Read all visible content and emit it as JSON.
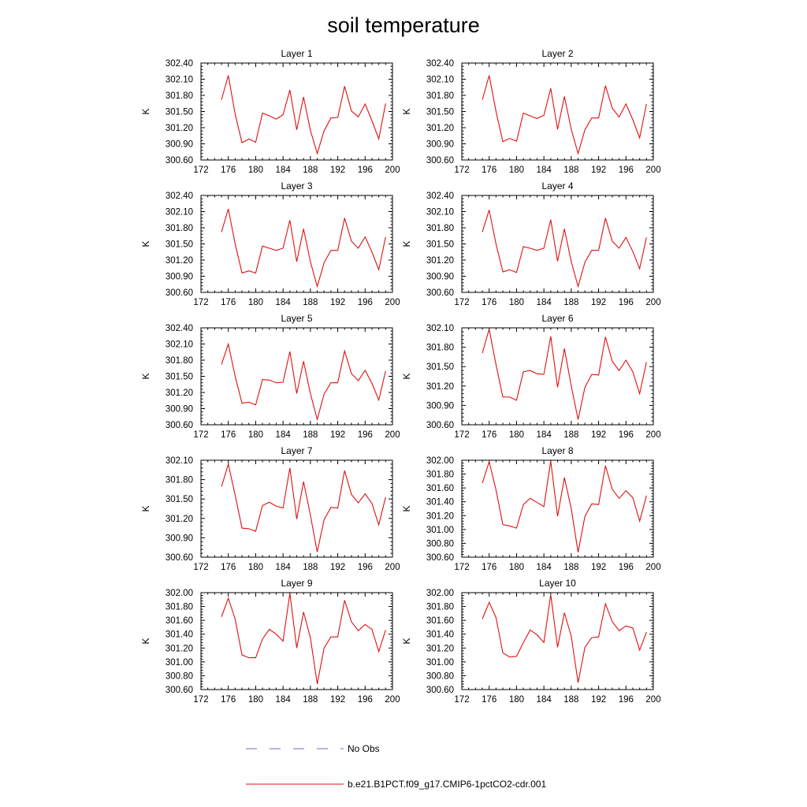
{
  "figure": {
    "title": "soil temperature",
    "legend": [
      {
        "label": "No Obs",
        "color": "#6a6ad0",
        "dash": "dashed"
      },
      {
        "label": "b.e21.B1PCT.f09_g17.CMIP6-1pctCO2-cdr.001",
        "color": "#e01010",
        "dash": "solid"
      }
    ]
  },
  "chart_data": [
    {
      "type": "line",
      "title": "Layer 1",
      "ylabel": "K",
      "xlim": [
        172,
        200
      ],
      "ylim": [
        300.6,
        302.4
      ],
      "xticks": [
        172,
        176,
        180,
        184,
        188,
        192,
        196,
        200
      ],
      "yticks": [
        "300.60",
        "300.90",
        "301.20",
        "301.50",
        "301.80",
        "302.10",
        "302.40"
      ],
      "series": [
        {
          "color": "#e01010",
          "x": [
            175,
            176,
            177,
            178,
            179,
            180,
            181,
            182,
            183,
            184,
            185,
            186,
            187,
            188,
            189,
            190,
            191,
            192,
            193,
            194,
            195,
            196,
            197,
            198,
            199
          ],
          "values": [
            301.72,
            302.17,
            301.45,
            300.92,
            300.99,
            300.93,
            301.47,
            301.42,
            301.36,
            301.44,
            301.9,
            301.16,
            301.77,
            301.15,
            300.72,
            301.14,
            301.38,
            301.39,
            301.97,
            301.51,
            301.4,
            301.64,
            301.33,
            300.99,
            301.65
          ]
        }
      ]
    },
    {
      "type": "line",
      "title": "Layer 2",
      "ylabel": "K",
      "xlim": [
        172,
        200
      ],
      "ylim": [
        300.6,
        302.4
      ],
      "xticks": [
        172,
        176,
        180,
        184,
        188,
        192,
        196,
        200
      ],
      "yticks": [
        "300.60",
        "300.90",
        "301.20",
        "301.50",
        "301.80",
        "302.10",
        "302.40"
      ],
      "series": [
        {
          "color": "#e01010",
          "x": [
            175,
            176,
            177,
            178,
            179,
            180,
            181,
            182,
            183,
            184,
            185,
            186,
            187,
            188,
            189,
            190,
            191,
            192,
            193,
            194,
            195,
            196,
            197,
            198,
            199
          ],
          "values": [
            301.72,
            302.17,
            301.5,
            300.94,
            301.0,
            300.95,
            301.47,
            301.42,
            301.37,
            301.43,
            301.93,
            301.17,
            301.78,
            301.17,
            300.72,
            301.16,
            301.38,
            301.38,
            301.98,
            301.56,
            301.4,
            301.64,
            301.35,
            301.01,
            301.64
          ]
        }
      ]
    },
    {
      "type": "line",
      "title": "Layer 3",
      "ylabel": "K",
      "xlim": [
        172,
        200
      ],
      "ylim": [
        300.6,
        302.4
      ],
      "xticks": [
        172,
        176,
        180,
        184,
        188,
        192,
        196,
        200
      ],
      "yticks": [
        "300.60",
        "300.90",
        "301.20",
        "301.50",
        "301.80",
        "302.10",
        "302.40"
      ],
      "series": [
        {
          "color": "#e01010",
          "x": [
            175,
            176,
            177,
            178,
            179,
            180,
            181,
            182,
            183,
            184,
            185,
            186,
            187,
            188,
            189,
            190,
            191,
            192,
            193,
            194,
            195,
            196,
            197,
            198,
            199
          ],
          "values": [
            301.72,
            302.15,
            301.5,
            300.96,
            301.0,
            300.96,
            301.46,
            301.42,
            301.38,
            301.42,
            301.94,
            301.17,
            301.78,
            301.17,
            300.71,
            301.15,
            301.38,
            301.38,
            301.98,
            301.55,
            301.42,
            301.63,
            301.35,
            301.02,
            301.63
          ]
        }
      ]
    },
    {
      "type": "line",
      "title": "Layer 4",
      "ylabel": "K",
      "xlim": [
        172,
        200
      ],
      "ylim": [
        300.6,
        302.4
      ],
      "xticks": [
        172,
        176,
        180,
        184,
        188,
        192,
        196,
        200
      ],
      "yticks": [
        "300.60",
        "300.90",
        "301.20",
        "301.50",
        "301.80",
        "302.10",
        "302.40"
      ],
      "series": [
        {
          "color": "#e01010",
          "x": [
            175,
            176,
            177,
            178,
            179,
            180,
            181,
            182,
            183,
            184,
            185,
            186,
            187,
            188,
            189,
            190,
            191,
            192,
            193,
            194,
            195,
            196,
            197,
            198,
            199
          ],
          "values": [
            301.72,
            302.13,
            301.5,
            300.98,
            301.02,
            300.97,
            301.45,
            301.42,
            301.38,
            301.42,
            301.95,
            301.18,
            301.78,
            301.17,
            300.71,
            301.16,
            301.38,
            301.38,
            301.98,
            301.55,
            301.42,
            301.62,
            301.36,
            301.04,
            301.62
          ]
        }
      ]
    },
    {
      "type": "line",
      "title": "Layer 5",
      "ylabel": "K",
      "xlim": [
        172,
        200
      ],
      "ylim": [
        300.6,
        302.4
      ],
      "xticks": [
        172,
        176,
        180,
        184,
        188,
        192,
        196,
        200
      ],
      "yticks": [
        "300.60",
        "300.90",
        "301.20",
        "301.50",
        "301.80",
        "302.10",
        "302.40"
      ],
      "series": [
        {
          "color": "#e01010",
          "x": [
            175,
            176,
            177,
            178,
            179,
            180,
            181,
            182,
            183,
            184,
            185,
            186,
            187,
            188,
            189,
            190,
            191,
            192,
            193,
            194,
            195,
            196,
            197,
            198,
            199
          ],
          "values": [
            301.72,
            302.1,
            301.5,
            301.0,
            301.02,
            300.97,
            301.44,
            301.43,
            301.38,
            301.39,
            301.96,
            301.18,
            301.78,
            301.18,
            300.7,
            301.17,
            301.38,
            301.38,
            301.97,
            301.55,
            301.42,
            301.61,
            301.37,
            301.06,
            301.6
          ]
        }
      ]
    },
    {
      "type": "line",
      "title": "Layer 6",
      "ylabel": "K",
      "xlim": [
        172,
        200
      ],
      "ylim": [
        300.6,
        302.1
      ],
      "xticks": [
        172,
        176,
        180,
        184,
        188,
        192,
        196,
        200
      ],
      "yticks": [
        "300.60",
        "300.90",
        "301.20",
        "301.50",
        "301.80",
        "302.10"
      ],
      "series": [
        {
          "color": "#e01010",
          "x": [
            175,
            176,
            177,
            178,
            179,
            180,
            181,
            182,
            183,
            184,
            185,
            186,
            187,
            188,
            189,
            190,
            191,
            192,
            193,
            194,
            195,
            196,
            197,
            198,
            199
          ],
          "values": [
            301.71,
            302.08,
            301.53,
            301.03,
            301.03,
            300.98,
            301.42,
            301.44,
            301.39,
            301.38,
            301.97,
            301.18,
            301.78,
            301.2,
            300.68,
            301.18,
            301.38,
            301.37,
            301.96,
            301.58,
            301.44,
            301.6,
            301.42,
            301.08,
            301.57
          ]
        }
      ]
    },
    {
      "type": "line",
      "title": "Layer 7",
      "ylabel": "K",
      "xlim": [
        172,
        200
      ],
      "ylim": [
        300.6,
        302.1
      ],
      "xticks": [
        172,
        176,
        180,
        184,
        188,
        192,
        196,
        200
      ],
      "yticks": [
        "300.60",
        "300.90",
        "301.20",
        "301.50",
        "301.80",
        "302.10"
      ],
      "series": [
        {
          "color": "#e01010",
          "x": [
            175,
            176,
            177,
            178,
            179,
            180,
            181,
            182,
            183,
            184,
            185,
            186,
            187,
            188,
            189,
            190,
            191,
            192,
            193,
            194,
            195,
            196,
            197,
            198,
            199
          ],
          "values": [
            301.69,
            302.04,
            301.56,
            301.05,
            301.04,
            301.0,
            301.4,
            301.45,
            301.39,
            301.36,
            301.98,
            301.19,
            301.77,
            301.25,
            300.68,
            301.18,
            301.37,
            301.36,
            301.94,
            301.57,
            301.44,
            301.58,
            301.43,
            301.1,
            301.53
          ]
        }
      ]
    },
    {
      "type": "line",
      "title": "Layer 8",
      "ylabel": "K",
      "xlim": [
        172,
        200
      ],
      "ylim": [
        300.6,
        302.0
      ],
      "xticks": [
        172,
        176,
        180,
        184,
        188,
        192,
        196,
        200
      ],
      "yticks": [
        "300.60",
        "300.80",
        "301.00",
        "301.20",
        "301.40",
        "301.60",
        "301.80",
        "302.00"
      ],
      "series": [
        {
          "color": "#e01010",
          "x": [
            175,
            176,
            177,
            178,
            179,
            180,
            181,
            182,
            183,
            184,
            185,
            186,
            187,
            188,
            189,
            190,
            191,
            192,
            193,
            194,
            195,
            196,
            197,
            198,
            199
          ],
          "values": [
            301.67,
            301.98,
            301.57,
            301.07,
            301.05,
            301.02,
            301.36,
            301.45,
            301.39,
            301.33,
            301.99,
            301.19,
            301.75,
            301.3,
            300.67,
            301.19,
            301.37,
            301.36,
            301.92,
            301.58,
            301.45,
            301.56,
            301.46,
            301.12,
            301.49
          ]
        }
      ]
    },
    {
      "type": "line",
      "title": "Layer 9",
      "ylabel": "K",
      "xlim": [
        172,
        200
      ],
      "ylim": [
        300.6,
        302.0
      ],
      "xticks": [
        172,
        176,
        180,
        184,
        188,
        192,
        196,
        200
      ],
      "yticks": [
        "300.60",
        "300.80",
        "301.00",
        "301.20",
        "301.40",
        "301.60",
        "301.80",
        "302.00"
      ],
      "series": [
        {
          "color": "#e01010",
          "x": [
            175,
            176,
            177,
            178,
            179,
            180,
            181,
            182,
            183,
            184,
            185,
            186,
            187,
            188,
            189,
            190,
            191,
            192,
            193,
            194,
            195,
            196,
            197,
            198,
            199
          ],
          "values": [
            301.65,
            301.92,
            301.62,
            301.1,
            301.06,
            301.06,
            301.33,
            301.47,
            301.4,
            301.3,
            301.99,
            301.2,
            301.72,
            301.35,
            300.68,
            301.2,
            301.36,
            301.36,
            301.89,
            301.58,
            301.45,
            301.54,
            301.47,
            301.15,
            301.46
          ]
        }
      ]
    },
    {
      "type": "line",
      "title": "Layer 10",
      "ylabel": "K",
      "xlim": [
        172,
        200
      ],
      "ylim": [
        300.6,
        302.0
      ],
      "xticks": [
        172,
        176,
        180,
        184,
        188,
        192,
        196,
        200
      ],
      "yticks": [
        "300.60",
        "300.80",
        "301.00",
        "301.20",
        "301.40",
        "301.60",
        "301.80",
        "302.00"
      ],
      "series": [
        {
          "color": "#e01010",
          "x": [
            175,
            176,
            177,
            178,
            179,
            180,
            181,
            182,
            183,
            184,
            185,
            186,
            187,
            188,
            189,
            190,
            191,
            192,
            193,
            194,
            195,
            196,
            197,
            198,
            199
          ],
          "values": [
            301.62,
            301.86,
            301.64,
            301.13,
            301.07,
            301.08,
            301.28,
            301.46,
            301.39,
            301.28,
            301.97,
            301.21,
            301.71,
            301.37,
            300.7,
            301.21,
            301.35,
            301.36,
            301.84,
            301.58,
            301.45,
            301.52,
            301.49,
            301.17,
            301.43
          ]
        }
      ]
    }
  ]
}
